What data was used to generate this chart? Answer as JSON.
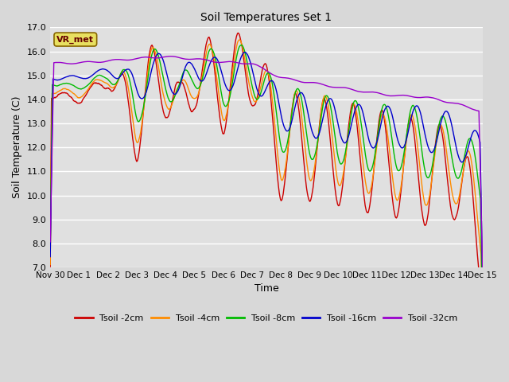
{
  "title": "Soil Temperatures Set 1",
  "xlabel": "Time",
  "ylabel": "Soil Temperature (C)",
  "ylim": [
    7.0,
    17.0
  ],
  "yticks": [
    7.0,
    8.0,
    9.0,
    10.0,
    11.0,
    12.0,
    13.0,
    14.0,
    15.0,
    16.0,
    17.0
  ],
  "bg_color": "#e0e0e0",
  "grid_color": "#ffffff",
  "legend_label": "VR_met",
  "series_colors": {
    "Tsoil -2cm": "#cc0000",
    "Tsoil -4cm": "#ff8c00",
    "Tsoil -8cm": "#00bb00",
    "Tsoil -16cm": "#0000cc",
    "Tsoil -32cm": "#9900cc"
  },
  "series_names": [
    "Tsoil -2cm",
    "Tsoil -4cm",
    "Tsoil -8cm",
    "Tsoil -16cm",
    "Tsoil -32cm"
  ],
  "xtick_labels": [
    "Nov 30",
    "Dec 1",
    "Dec 2",
    "Dec 3",
    "Dec 4",
    "Dec 5",
    "Dec 6",
    "Dec 7",
    "Dec 8",
    "Dec 9",
    "Dec 10",
    "Dec 11",
    "Dec 12",
    "Dec 13",
    "Dec 14",
    "Dec 15"
  ],
  "n_points": 1441,
  "days": 15,
  "figwidth": 6.4,
  "figheight": 4.8,
  "dpi": 100
}
